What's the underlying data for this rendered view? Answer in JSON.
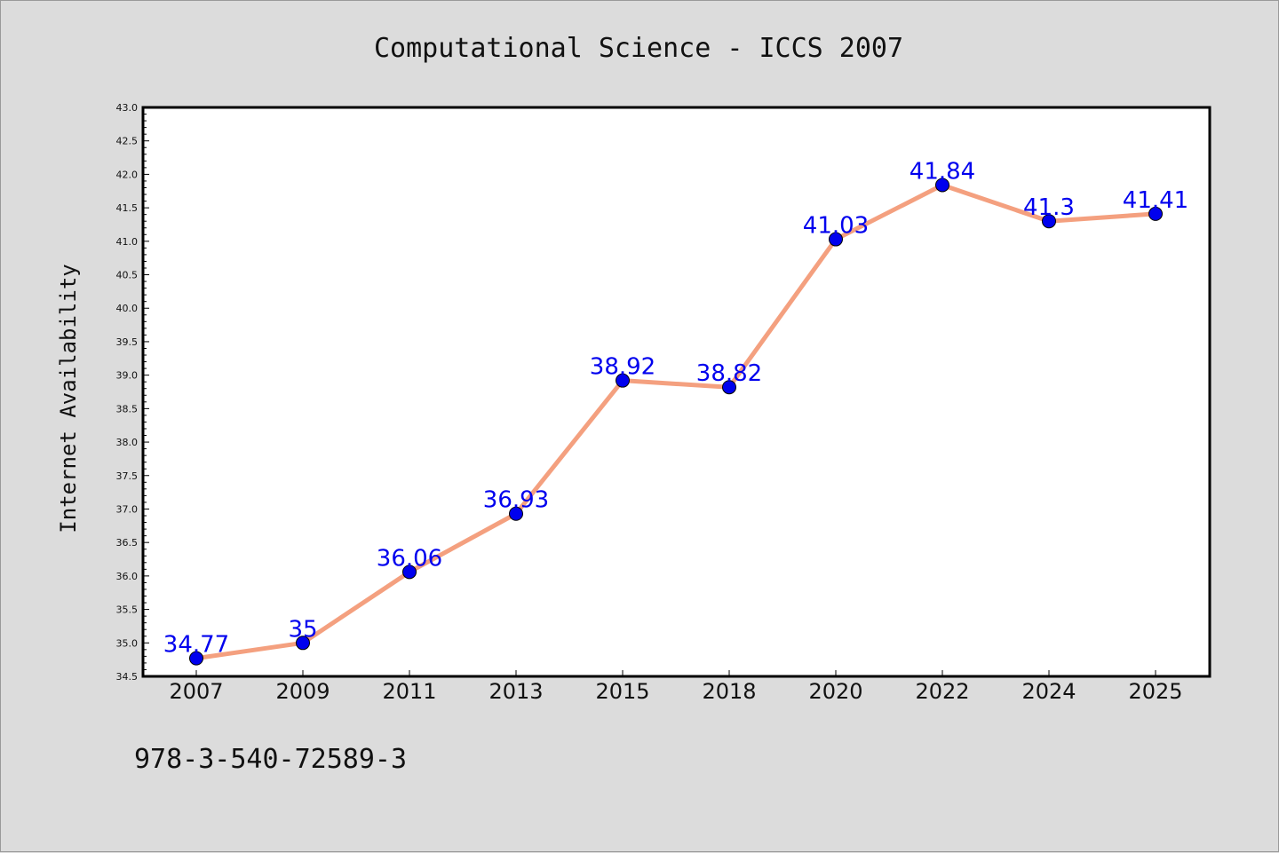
{
  "chart_data": {
    "type": "line",
    "title": "Computational Science - ICCS 2007",
    "xlabel": "",
    "ylabel": "Internet Availability",
    "categories": [
      "2007",
      "2009",
      "2011",
      "2013",
      "2015",
      "2018",
      "2020",
      "2022",
      "2024",
      "2025"
    ],
    "series": [
      {
        "values": [
          34.77,
          35,
          36.06,
          36.93,
          38.92,
          38.82,
          41.03,
          41.84,
          41.3,
          41.41
        ],
        "line_color": "#f4a07f",
        "marker_color": "#0000ee"
      }
    ],
    "ylim": [
      34.5,
      43.0
    ],
    "ytick_step": 0.5,
    "data_label_color": "#0000ee",
    "grid": false,
    "legend": "none"
  },
  "footer_text": "978-3-540-72589-3"
}
